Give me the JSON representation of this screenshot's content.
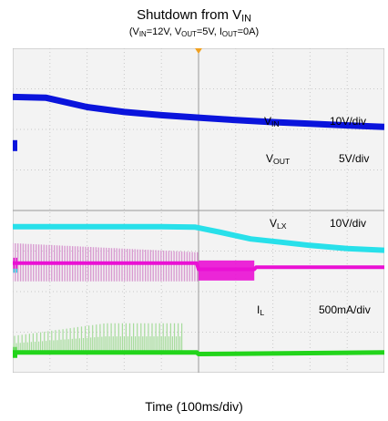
{
  "chart_data": {
    "type": "line",
    "title": "Shutdown from V",
    "title_sub": "IN",
    "subtitle": {
      "open": "(V",
      "vin_sub": "IN",
      "vin_val": "=12V, V",
      "vout_sub": "OUT",
      "vout_val": "=5V, I",
      "iout_sub": "OUT",
      "iout_val": "=0A)"
    },
    "xlabel": "Time (100ms/div)",
    "grid": {
      "divisions_x": 10,
      "divisions_y": 8
    },
    "xlim": [
      0,
      1000
    ],
    "x_unit": "ms",
    "channels": [
      {
        "id": "vin",
        "name": "V",
        "name_sub": "IN",
        "scale": "10V/div",
        "color": "#0a14dc",
        "ground_marker": "1"
      },
      {
        "id": "vout",
        "name": "V",
        "name_sub": "OUT",
        "scale": "5V/div",
        "color": "#28e0ea",
        "ground_marker": "2"
      },
      {
        "id": "vlx",
        "name": "V",
        "name_sub": "LX",
        "scale": "10V/div",
        "color": "#ea10d4",
        "ground_marker": "3"
      },
      {
        "id": "il",
        "name": "I",
        "name_sub": "L",
        "scale": "500mA/div",
        "color": "#22d41a",
        "ground_marker": "4"
      }
    ],
    "series": [
      {
        "name": "VIN",
        "unit": "V",
        "x": [
          0,
          90,
          200,
          300,
          400,
          500,
          600,
          700,
          800,
          900,
          1000
        ],
        "values": [
          12.0,
          11.8,
          9.5,
          8.3,
          7.5,
          6.9,
          6.3,
          5.8,
          5.4,
          5.0,
          4.6
        ]
      },
      {
        "name": "VOUT",
        "unit": "V",
        "x": [
          0,
          200,
          400,
          490,
          560,
          640,
          720,
          800,
          900,
          1000
        ],
        "values": [
          5.0,
          5.0,
          5.0,
          4.95,
          4.3,
          3.5,
          3.1,
          2.7,
          2.3,
          2.1
        ]
      },
      {
        "name": "VLX",
        "unit": "V",
        "x": [
          0,
          495,
          500,
          650,
          655,
          1000
        ],
        "values": [
          0.0,
          0.0,
          -1.5,
          -1.5,
          -1.0,
          -1.0
        ]
      },
      {
        "name": "IL",
        "unit": "A",
        "x": [
          0,
          495,
          500,
          1000
        ],
        "values": [
          0.0,
          0.0,
          -0.02,
          0.0
        ]
      }
    ],
    "annotations": {
      "trigger_x": 500,
      "vlx_switching_until": 500,
      "vlx_burst_until": 650,
      "il_ripple_until": 460
    }
  }
}
